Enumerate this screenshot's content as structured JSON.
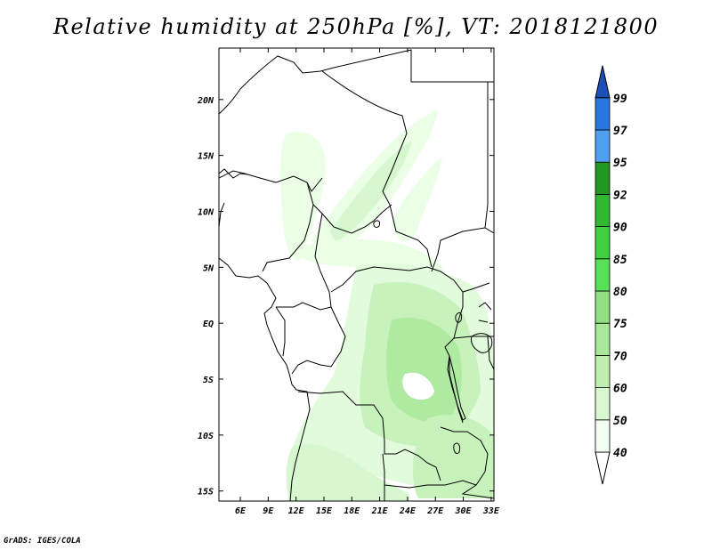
{
  "map": {
    "title": "Relative humidity at 250hPa [%], VT: 2018121800",
    "credit": "GrADS: IGES/COLA",
    "lon_range": [
      3.7,
      33.3
    ],
    "lat_range": [
      -15.9,
      24.6
    ],
    "lon_ticks": [
      {
        "value": 6,
        "label": "6E"
      },
      {
        "value": 9,
        "label": "9E"
      },
      {
        "value": 12,
        "label": "12E"
      },
      {
        "value": 15,
        "label": "15E"
      },
      {
        "value": 18,
        "label": "18E"
      },
      {
        "value": 21,
        "label": "21E"
      },
      {
        "value": 24,
        "label": "24E"
      },
      {
        "value": 27,
        "label": "27E"
      },
      {
        "value": 30,
        "label": "30E"
      },
      {
        "value": 33,
        "label": "33E"
      }
    ],
    "lat_ticks": [
      {
        "value": 20,
        "label": "20N"
      },
      {
        "value": 15,
        "label": "15N"
      },
      {
        "value": 10,
        "label": "10N"
      },
      {
        "value": 5,
        "label": "5N"
      },
      {
        "value": 0,
        "label": "EQ"
      },
      {
        "value": -5,
        "label": "5S"
      },
      {
        "value": -10,
        "label": "10S"
      },
      {
        "value": -15,
        "label": "15S"
      }
    ]
  },
  "colorbar": {
    "levels": [
      "40",
      "50",
      "60",
      "70",
      "75",
      "80",
      "85",
      "90",
      "92",
      "95",
      "97",
      "99"
    ],
    "colors": [
      "#f0fff0",
      "#d8f8d0",
      "#c0f0b0",
      "#a8e898",
      "#90e080",
      "#58e058",
      "#40d040",
      "#30b830",
      "#209820",
      "#4ea0f0",
      "#2878e0",
      "#1a50b8"
    ],
    "over_color": "#1a50b8",
    "under_color": "#ffffff"
  }
}
